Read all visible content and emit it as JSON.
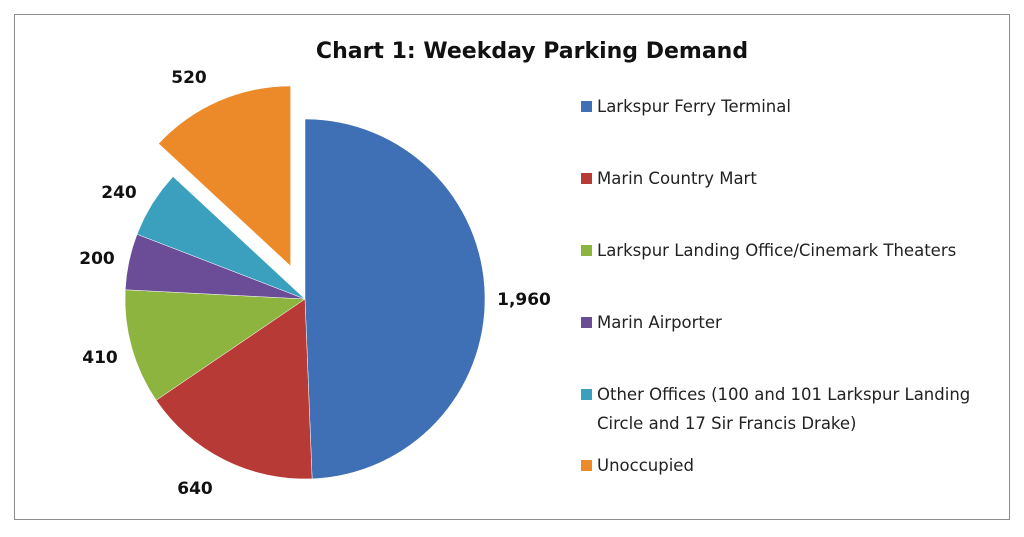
{
  "chart_data": {
    "type": "pie",
    "title": "Chart 1: Weekday Parking Demand",
    "categories": [
      "Larkspur Ferry Terminal",
      "Marin Country Mart",
      "Larkspur Landing Office/Cinemark Theaters",
      "Marin Airporter",
      "Other Offices (100 and 101 Larkspur Landing Circle and 17 Sir Francis Drake)",
      "Unoccupied"
    ],
    "values": [
      1960,
      640,
      410,
      200,
      240,
      520
    ],
    "data_labels": [
      "1,960",
      "640",
      "410",
      "200",
      "240",
      "520"
    ],
    "colors": [
      "#3f6fb5",
      "#b83a37",
      "#8db43e",
      "#6b4c97",
      "#3aa0bd",
      "#ec8a29"
    ],
    "exploded": [
      false,
      false,
      false,
      false,
      false,
      true
    ],
    "start_angle_deg": 0,
    "direction": "clockwise",
    "legend": {
      "position": "right",
      "entries": [
        [
          "Larkspur Ferry Terminal"
        ],
        [
          "Marin Country Mart"
        ],
        [
          "Larkspur Landing Office/Cinemark Theaters"
        ],
        [
          "Marin Airporter"
        ],
        [
          "Other Offices (100 and 101 Larkspur Landing",
          "Circle and 17 Sir Francis Drake)"
        ],
        [
          "Unoccupied"
        ]
      ]
    }
  }
}
